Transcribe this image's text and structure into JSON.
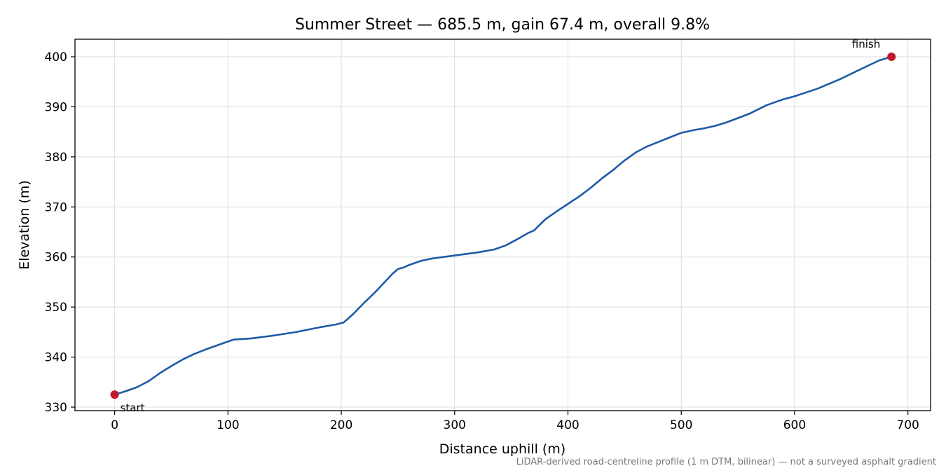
{
  "chart_data": {
    "type": "line",
    "title": "Summer Street — 685.5 m, gain 67.4 m, overall 9.8%",
    "xlabel": "Distance uphill (m)",
    "ylabel": "Elevation (m)",
    "xlim": [
      -35,
      720
    ],
    "ylim": [
      329.3,
      403.5
    ],
    "xticks": [
      0,
      100,
      200,
      300,
      400,
      500,
      600,
      700
    ],
    "yticks": [
      330,
      340,
      350,
      360,
      370,
      380,
      390,
      400
    ],
    "grid": true,
    "line_color": "#1f5aa8",
    "marker_color": "#c0182d",
    "series": [
      {
        "x": [
          0,
          10,
          20,
          30,
          40,
          50,
          60,
          70,
          80,
          90,
          100,
          105,
          120,
          140,
          160,
          180,
          195,
          202,
          210,
          220,
          230,
          240,
          245,
          250,
          255,
          260,
          270,
          280,
          300,
          320,
          335,
          345,
          355,
          365,
          370,
          380,
          390,
          400,
          410,
          420,
          430,
          440,
          450,
          460,
          470,
          480,
          490,
          500,
          510,
          520,
          530,
          540,
          560,
          575,
          590,
          600,
          620,
          640,
          660,
          675,
          685.5
        ],
        "y": [
          332.5,
          333.2,
          334.0,
          335.2,
          336.8,
          338.2,
          339.5,
          340.6,
          341.5,
          342.3,
          343.1,
          343.5,
          343.7,
          344.3,
          345.0,
          345.9,
          346.5,
          346.9,
          348.5,
          350.8,
          353.0,
          355.4,
          356.6,
          357.6,
          357.9,
          358.4,
          359.2,
          359.7,
          360.3,
          360.9,
          361.5,
          362.3,
          363.5,
          364.8,
          365.3,
          367.5,
          369.1,
          370.6,
          372.1,
          373.8,
          375.7,
          377.4,
          379.3,
          380.9,
          382.1,
          383.0,
          383.9,
          384.8,
          385.3,
          385.7,
          386.2,
          386.9,
          388.6,
          390.3,
          391.5,
          392.1,
          393.6,
          395.5,
          397.7,
          399.3,
          400.0
        ]
      }
    ],
    "points": [
      {
        "name": "start",
        "label": "start",
        "x": 0,
        "y": 332.5
      },
      {
        "name": "finish",
        "label": "finish",
        "x": 685.5,
        "y": 400.0
      }
    ],
    "footnote": "LiDAR-derived road-centreline profile (1 m DTM, bilinear) — not a surveyed asphalt gradient"
  }
}
